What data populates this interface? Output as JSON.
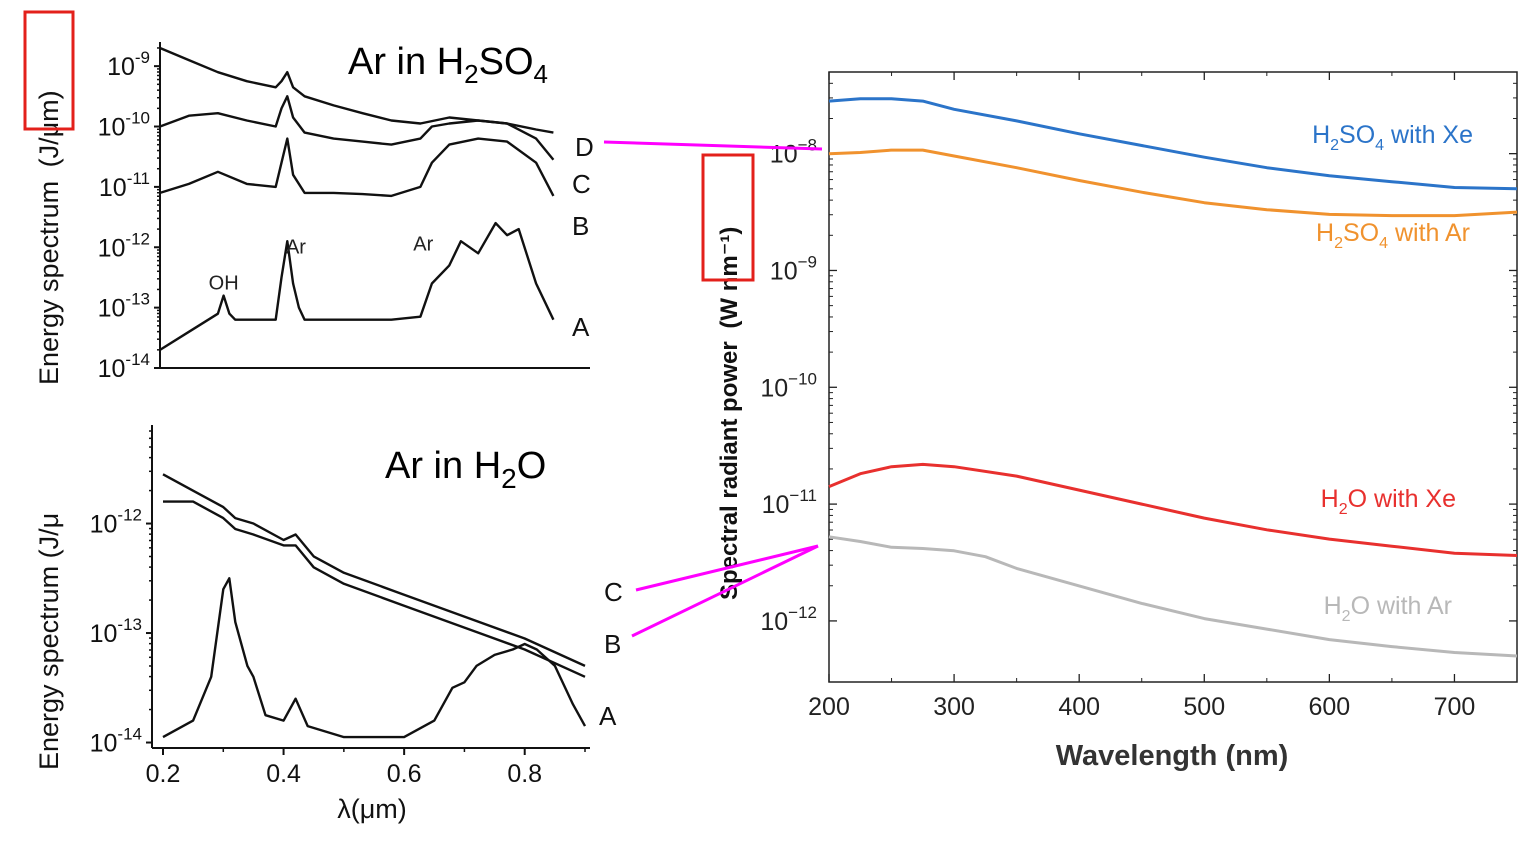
{
  "chart_data": [
    {
      "type": "line",
      "title": "Ar in H₂SO₄",
      "title_parts": {
        "base1": "Ar in H",
        "sub1": "2",
        "base2": "SO",
        "sub2": "4"
      },
      "ylabel": "Energy spectrum (J/μm)",
      "ylabel_main": "Energy spectrum",
      "ylabel_unit": "(J/μm)",
      "yscale": "log",
      "ylim": [
        1e-14,
        1e-08
      ],
      "xlim": [
        0.2,
        0.9
      ],
      "yticks": [
        {
          "value": -9,
          "base": "10",
          "exp": "-9"
        },
        {
          "value": -10,
          "base": "10",
          "exp": "-10"
        },
        {
          "value": -11,
          "base": "10",
          "exp": "-11"
        },
        {
          "value": -12,
          "base": "10",
          "exp": "-12"
        },
        {
          "value": -13,
          "base": "10",
          "exp": "-13"
        },
        {
          "value": -14,
          "base": "10",
          "exp": "-14"
        }
      ],
      "annotations": [
        {
          "text": "OH",
          "x": 0.31,
          "y": -12.7
        },
        {
          "text": "Ar",
          "x": 0.435,
          "y": -12.1
        },
        {
          "text": "Ar",
          "x": 0.655,
          "y": -12.05
        }
      ],
      "series": [
        {
          "name": "D",
          "x": [
            0.2,
            0.25,
            0.3,
            0.35,
            0.4,
            0.41,
            0.42,
            0.43,
            0.45,
            0.5,
            0.55,
            0.6,
            0.65,
            0.7,
            0.75,
            0.8,
            0.85,
            0.88
          ],
          "y": [
            -8.7,
            -8.9,
            -9.1,
            -9.25,
            -9.35,
            -9.25,
            -9.1,
            -9.35,
            -9.5,
            -9.65,
            -9.78,
            -9.9,
            -9.95,
            -9.85,
            -9.9,
            -9.95,
            -10.05,
            -10.1
          ]
        },
        {
          "name": "C",
          "x": [
            0.2,
            0.25,
            0.3,
            0.35,
            0.4,
            0.41,
            0.42,
            0.43,
            0.45,
            0.5,
            0.55,
            0.6,
            0.65,
            0.67,
            0.7,
            0.75,
            0.8,
            0.85,
            0.88
          ],
          "y": [
            -10.0,
            -9.82,
            -9.78,
            -9.9,
            -10.0,
            -9.7,
            -9.5,
            -9.85,
            -10.1,
            -10.2,
            -10.25,
            -10.3,
            -10.2,
            -10.0,
            -9.95,
            -9.9,
            -9.95,
            -10.2,
            -10.55
          ]
        },
        {
          "name": "B",
          "x": [
            0.2,
            0.25,
            0.3,
            0.35,
            0.4,
            0.41,
            0.42,
            0.43,
            0.45,
            0.5,
            0.55,
            0.6,
            0.65,
            0.67,
            0.7,
            0.75,
            0.8,
            0.85,
            0.88
          ],
          "y": [
            -11.1,
            -10.95,
            -10.75,
            -10.95,
            -11.0,
            -10.6,
            -10.2,
            -10.8,
            -11.1,
            -11.1,
            -11.12,
            -11.15,
            -11.0,
            -10.6,
            -10.3,
            -10.2,
            -10.25,
            -10.6,
            -11.15
          ]
        },
        {
          "name": "A",
          "x": [
            0.2,
            0.25,
            0.3,
            0.31,
            0.32,
            0.33,
            0.35,
            0.4,
            0.41,
            0.42,
            0.43,
            0.44,
            0.45,
            0.5,
            0.55,
            0.6,
            0.65,
            0.67,
            0.7,
            0.72,
            0.75,
            0.78,
            0.8,
            0.82,
            0.85,
            0.88
          ],
          "y": [
            -13.7,
            -13.4,
            -13.1,
            -12.8,
            -13.1,
            -13.2,
            -13.2,
            -13.2,
            -12.5,
            -11.9,
            -12.6,
            -13.0,
            -13.2,
            -13.2,
            -13.2,
            -13.2,
            -13.15,
            -12.6,
            -12.3,
            -11.9,
            -12.1,
            -11.6,
            -11.8,
            -11.7,
            -12.6,
            -13.2
          ]
        }
      ]
    },
    {
      "type": "line",
      "title": "Ar in H₂O",
      "title_parts": {
        "base1": "Ar in H",
        "sub1": "2",
        "base2": "O"
      },
      "ylabel": "Energy spectrum (J/μ",
      "xlabel": "λ(μm)",
      "yscale": "log",
      "ylim": [
        1e-14,
        1e-11
      ],
      "xlim": [
        0.2,
        0.9
      ],
      "xticks": [
        "0.2",
        "0.4",
        "0.6",
        "0.8"
      ],
      "yticks": [
        {
          "value": -12,
          "base": "10",
          "exp": "-12"
        },
        {
          "value": -13,
          "base": "10",
          "exp": "-13"
        },
        {
          "value": -14,
          "base": "10",
          "exp": "-14"
        }
      ],
      "series": [
        {
          "name": "C",
          "x": [
            0.2,
            0.25,
            0.3,
            0.32,
            0.35,
            0.4,
            0.42,
            0.45,
            0.5,
            0.6,
            0.7,
            0.8,
            0.9
          ],
          "y": [
            -11.55,
            -11.7,
            -11.85,
            -11.95,
            -12.0,
            -12.15,
            -12.1,
            -12.3,
            -12.45,
            -12.65,
            -12.85,
            -13.05,
            -13.3
          ]
        },
        {
          "name": "B",
          "x": [
            0.2,
            0.25,
            0.3,
            0.32,
            0.35,
            0.4,
            0.42,
            0.45,
            0.5,
            0.6,
            0.7,
            0.8,
            0.9
          ],
          "y": [
            -11.8,
            -11.8,
            -11.95,
            -12.05,
            -12.1,
            -12.2,
            -12.2,
            -12.4,
            -12.55,
            -12.75,
            -12.95,
            -13.15,
            -13.4
          ]
        },
        {
          "name": "A",
          "x": [
            0.2,
            0.25,
            0.28,
            0.3,
            0.31,
            0.32,
            0.34,
            0.35,
            0.37,
            0.4,
            0.42,
            0.44,
            0.5,
            0.6,
            0.65,
            0.68,
            0.7,
            0.72,
            0.75,
            0.78,
            0.8,
            0.82,
            0.85,
            0.88,
            0.9
          ],
          "y": [
            -13.95,
            -13.8,
            -13.4,
            -12.6,
            -12.5,
            -12.9,
            -13.3,
            -13.4,
            -13.75,
            -13.8,
            -13.6,
            -13.85,
            -13.95,
            -13.95,
            -13.8,
            -13.5,
            -13.45,
            -13.3,
            -13.2,
            -13.15,
            -13.1,
            -13.15,
            -13.3,
            -13.65,
            -13.85
          ]
        }
      ]
    },
    {
      "type": "line",
      "xlabel": "Wavelength (nm)",
      "ylabel": "Spectral radiant power (W nm⁻¹)",
      "ylabel_main": "Spectral radiant power",
      "ylabel_unit": "(W nm⁻¹)",
      "yscale": "log",
      "ylim": [
        3e-13,
        5e-08
      ],
      "xlim": [
        200,
        750
      ],
      "xticks": [
        "200",
        "300",
        "400",
        "500",
        "600",
        "700"
      ],
      "yticks": [
        {
          "value": -8,
          "base": "10",
          "exp": "−8"
        },
        {
          "value": -9,
          "base": "10",
          "exp": "−9"
        },
        {
          "value": -10,
          "base": "10",
          "exp": "−10"
        },
        {
          "value": -11,
          "base": "10",
          "exp": "−11"
        },
        {
          "value": -12,
          "base": "10",
          "exp": "−12"
        }
      ],
      "series": [
        {
          "name": "H₂SO₄ with Xe",
          "color": "#2b74c9",
          "label_parts": {
            "a": "H",
            "s1": "2",
            "b": "SO",
            "s2": "4",
            "c": " with Xe"
          },
          "x": [
            200,
            225,
            250,
            275,
            300,
            350,
            400,
            450,
            500,
            550,
            600,
            650,
            700,
            750
          ],
          "y": [
            -7.55,
            -7.53,
            -7.53,
            -7.55,
            -7.62,
            -7.72,
            -7.83,
            -7.93,
            -8.03,
            -8.12,
            -8.19,
            -8.24,
            -8.29,
            -8.3
          ]
        },
        {
          "name": "H₂SO₄ with Ar",
          "color": "#f0922e",
          "label_parts": {
            "a": "H",
            "s1": "2",
            "b": "SO",
            "s2": "4",
            "c": " with Ar"
          },
          "x": [
            200,
            225,
            250,
            275,
            300,
            350,
            400,
            450,
            500,
            550,
            600,
            650,
            700,
            750
          ],
          "y": [
            -8.0,
            -7.99,
            -7.97,
            -7.97,
            -8.02,
            -8.12,
            -8.23,
            -8.33,
            -8.42,
            -8.48,
            -8.52,
            -8.53,
            -8.53,
            -8.5
          ]
        },
        {
          "name": "H₂O with Xe",
          "color": "#e8302e",
          "label_parts": {
            "a": "H",
            "s1": "2",
            "b": "O",
            "s2": "",
            "c": " with Xe"
          },
          "x": [
            200,
            225,
            250,
            275,
            300,
            350,
            400,
            450,
            500,
            550,
            600,
            650,
            700,
            750
          ],
          "y": [
            -10.85,
            -10.74,
            -10.68,
            -10.66,
            -10.68,
            -10.76,
            -10.88,
            -11.0,
            -11.12,
            -11.22,
            -11.3,
            -11.36,
            -11.42,
            -11.44
          ]
        },
        {
          "name": "H₂O with Ar",
          "color": "#b8b8b8",
          "label_parts": {
            "a": "H",
            "s1": "2",
            "b": "O",
            "s2": "",
            "c": " with Ar"
          },
          "x": [
            200,
            225,
            250,
            275,
            300,
            325,
            350,
            400,
            450,
            500,
            550,
            600,
            650,
            700,
            750
          ],
          "y": [
            -11.28,
            -11.32,
            -11.37,
            -11.38,
            -11.4,
            -11.45,
            -11.55,
            -11.7,
            -11.85,
            -11.98,
            -12.07,
            -12.16,
            -12.22,
            -12.27,
            -12.3
          ]
        }
      ]
    }
  ],
  "connectors": [
    {
      "from": "top-left D",
      "to": "H₂SO₄ with Ar",
      "color": "#ff00ff"
    },
    {
      "from": "bottom-left C",
      "to": "H₂O with Ar",
      "color": "#ff00ff"
    },
    {
      "from": "bottom-left B",
      "to": "H₂O with Ar",
      "color": "#ff00ff"
    }
  ],
  "highlight_color": "#e3201b"
}
